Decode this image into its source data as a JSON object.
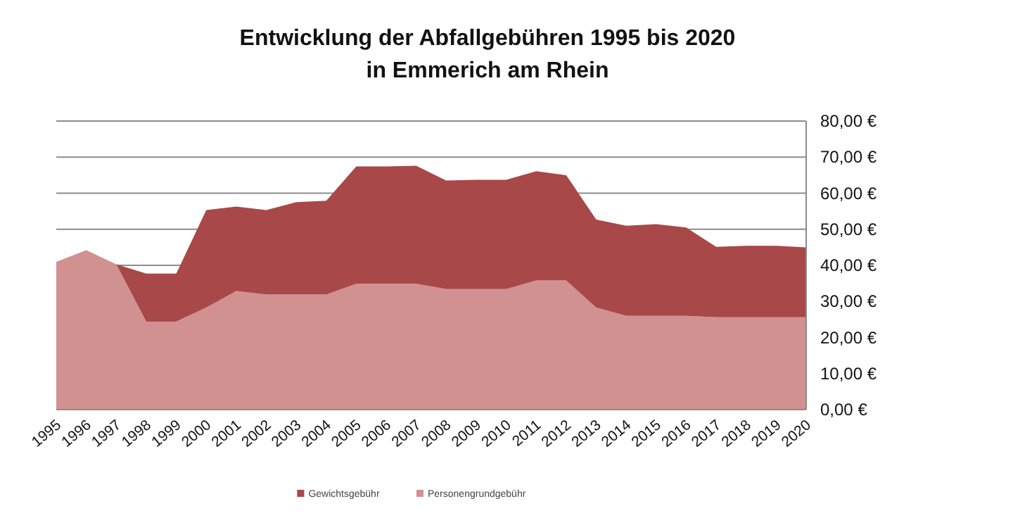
{
  "chart_data": {
    "type": "area",
    "stacked": true,
    "title": "Entwicklung der Abfallgebühren 1995 bis 2020\nin Emmerich am Rhein",
    "categories": [
      "1995",
      "1996",
      "1997",
      "1998",
      "1999",
      "2000",
      "2001",
      "2002",
      "2003",
      "2004",
      "2005",
      "2006",
      "2007",
      "2008",
      "2009",
      "2010",
      "2011",
      "2012",
      "2013",
      "2014",
      "2015",
      "2016",
      "2017",
      "2018",
      "2019",
      "2020"
    ],
    "series": [
      {
        "name": "Personengrundgebühr",
        "color": "#d19190",
        "values": [
          41.0,
          44.2,
          40.3,
          24.4,
          24.4,
          28.3,
          32.9,
          31.9,
          31.9,
          31.9,
          34.9,
          34.9,
          34.9,
          33.4,
          33.4,
          33.4,
          35.8,
          35.8,
          28.3,
          26.0,
          26.0,
          26.0,
          25.6,
          25.6,
          25.6,
          25.6
        ]
      },
      {
        "name": "Gewichtsgebühr",
        "color": "#a84848",
        "values": [
          0,
          0,
          0,
          13.3,
          13.3,
          27.0,
          23.4,
          23.4,
          25.6,
          26.0,
          32.5,
          32.5,
          32.7,
          30.1,
          30.3,
          30.3,
          30.3,
          29.2,
          24.4,
          25.0,
          25.4,
          24.5,
          19.5,
          19.8,
          19.8,
          19.4
        ]
      }
    ],
    "ylim": [
      0,
      80
    ],
    "yticks": [
      {
        "value": 0,
        "label": "0,00 €"
      },
      {
        "value": 10,
        "label": "10,00 €"
      },
      {
        "value": 20,
        "label": "20,00 €"
      },
      {
        "value": 30,
        "label": "30,00 €"
      },
      {
        "value": 40,
        "label": "40,00 €"
      },
      {
        "value": 50,
        "label": "50,00 €"
      },
      {
        "value": 60,
        "label": "60,00 €"
      },
      {
        "value": 70,
        "label": "70,00 €"
      },
      {
        "value": 80,
        "label": "80,00 €"
      }
    ],
    "grid": "y",
    "legend": "bottom"
  }
}
